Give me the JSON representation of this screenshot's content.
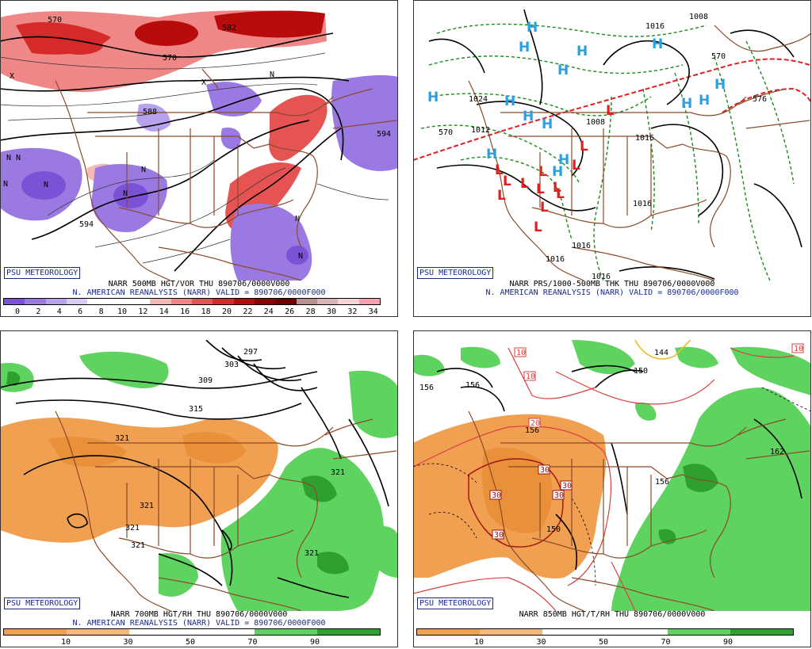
{
  "psu_label": "PSU METEOROLOGY",
  "panels": {
    "p1": {
      "title": "NARR 500MB HGT/VOR THU 890706/0000V000",
      "subtitle": "N. AMERICAN REANALYSIS (NARR) VALID = 890706/0000F000",
      "colorbar": {
        "colors": [
          "#7b52d6",
          "#9a7ae2",
          "#b7a3ec",
          "#d8cdf4",
          "#ffffff",
          "#ffffff",
          "#ffffff",
          "#f6b9b9",
          "#ef8787",
          "#e55353",
          "#d62a2a",
          "#b80c0c",
          "#8e0000",
          "#6e0000",
          "#b99090",
          "#d8b3b3",
          "#f2d4d4",
          "#f8a0b0"
        ],
        "ticks": [
          "0",
          "2",
          "4",
          "6",
          "8",
          "10",
          "12",
          "14",
          "16",
          "18",
          "20",
          "22",
          "24",
          "26",
          "28",
          "30",
          "32",
          "34"
        ]
      },
      "contour_labels": [
        "570",
        "582",
        "582",
        "594",
        "594",
        "594",
        "594",
        "582",
        "588",
        "570"
      ],
      "vort_labels": [
        "N",
        "N",
        "N",
        "N",
        "N",
        "N",
        "N",
        "N",
        "N",
        "X",
        "X"
      ]
    },
    "p2": {
      "title": "NARR PRS/1000-500MB THK THU 890706/0000V000",
      "subtitle": "N. AMERICAN REANALYSIS (NARR) VALID = 890706/0000F000",
      "high_letter": "H",
      "low_letter": "L",
      "isobar_labels": [
        "1008",
        "1016",
        "1024",
        "1012",
        "1008",
        "1016",
        "1016",
        "1016",
        "1016",
        "1016",
        "1024",
        "1012"
      ],
      "thickness_labels": [
        "570",
        "570",
        "576"
      ]
    },
    "p3": {
      "title": "NARR 700MB HGT/RH THU 890706/0000V000",
      "subtitle": "N. AMERICAN REANALYSIS (NARR) VALID = 890706/0000F000",
      "colorbar": {
        "colors": [
          "#f0a050",
          "#f4b878",
          "#ffffff",
          "#ffffff",
          "#5fd35f",
          "#2ea02e"
        ],
        "ticks": [
          "10",
          "30",
          "50",
          "70",
          "90"
        ]
      },
      "contour_labels": [
        "297",
        "303",
        "309",
        "315",
        "321",
        "321",
        "321",
        "321",
        "321",
        "321"
      ]
    },
    "p4": {
      "title": "NARR 850MB HGT/T/RH THU 890706/0000V000",
      "subtitle": "",
      "colorbar": {
        "colors": [
          "#f0a050",
          "#f4b878",
          "#ffffff",
          "#ffffff",
          "#5fd35f",
          "#2ea02e"
        ],
        "ticks": [
          "10",
          "30",
          "50",
          "70",
          "90"
        ]
      },
      "contour_labels": [
        "144",
        "150",
        "156",
        "156",
        "156",
        "156",
        "150",
        "162"
      ],
      "temp_labels": [
        "10",
        "10",
        "10",
        "20",
        "30",
        "30",
        "30",
        "30",
        "30"
      ]
    }
  }
}
